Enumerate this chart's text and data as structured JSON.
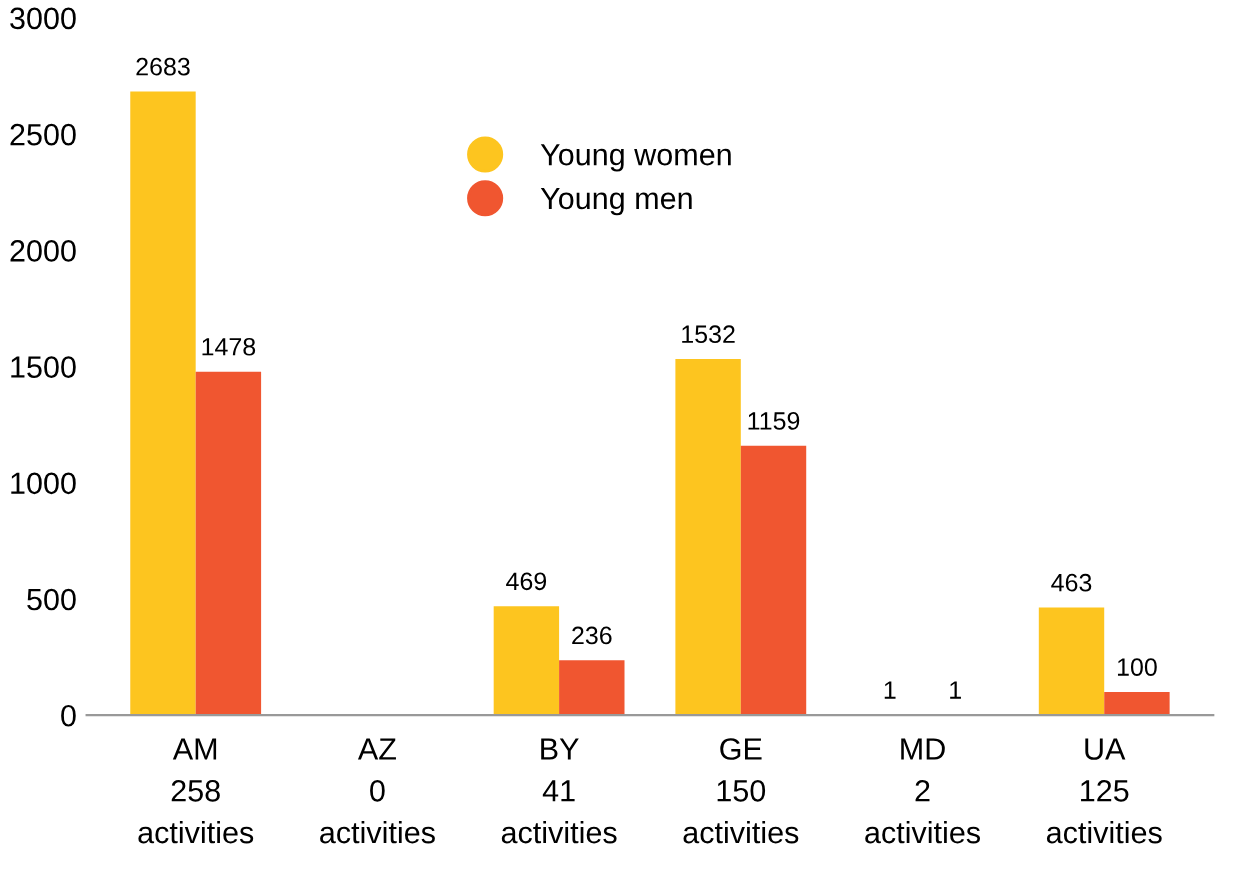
{
  "chart_data": {
    "type": "bar",
    "categories": [
      "AM\n258\nactivities",
      "AZ\n0\nactivities",
      "BY\n41\nactivities",
      "GE\n150\nactivities",
      "MD\n2\nactivities",
      "UA\n125\nactivities"
    ],
    "series": [
      {
        "name": "Young women",
        "color": "#fdc51f",
        "values": [
          2683,
          null,
          469,
          1532,
          1,
          463
        ]
      },
      {
        "name": "Young men",
        "color": "#f05630",
        "values": [
          1478,
          null,
          236,
          1159,
          1,
          100
        ]
      }
    ],
    "ylim": [
      0,
      3000
    ],
    "yticks": [
      0,
      500,
      1000,
      1500,
      2000,
      2500,
      3000
    ],
    "data_labels": true,
    "legend": "top",
    "grid": false
  }
}
